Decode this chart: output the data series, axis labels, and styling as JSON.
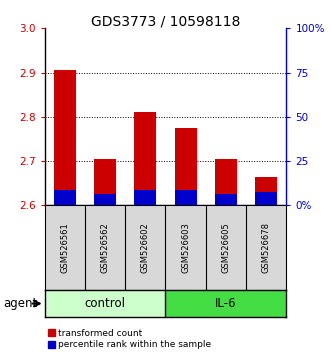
{
  "title": "GDS3773 / 10598118",
  "samples": [
    "GSM526561",
    "GSM526562",
    "GSM526602",
    "GSM526603",
    "GSM526605",
    "GSM526678"
  ],
  "transformed_counts": [
    2.905,
    2.705,
    2.81,
    2.775,
    2.705,
    2.665
  ],
  "percentile_ranks_val": [
    2.635,
    2.625,
    2.635,
    2.635,
    2.625,
    2.63
  ],
  "ylim": [
    2.6,
    3.0
  ],
  "yticks": [
    2.6,
    2.7,
    2.8,
    2.9,
    3.0
  ],
  "bar_bottom": 2.6,
  "red_color": "#cc0000",
  "blue_color": "#0000cc",
  "control_color_light": "#ccffcc",
  "control_color": "#ccffcc",
  "il6_color": "#44dd44",
  "agent_label": "agent",
  "legend_items": [
    "transformed count",
    "percentile rank within the sample"
  ],
  "title_fontsize": 10,
  "tick_fontsize": 7.5,
  "sample_fontsize": 6.0,
  "group_fontsize": 8.5,
  "legend_fontsize": 6.5,
  "bar_width": 0.55
}
